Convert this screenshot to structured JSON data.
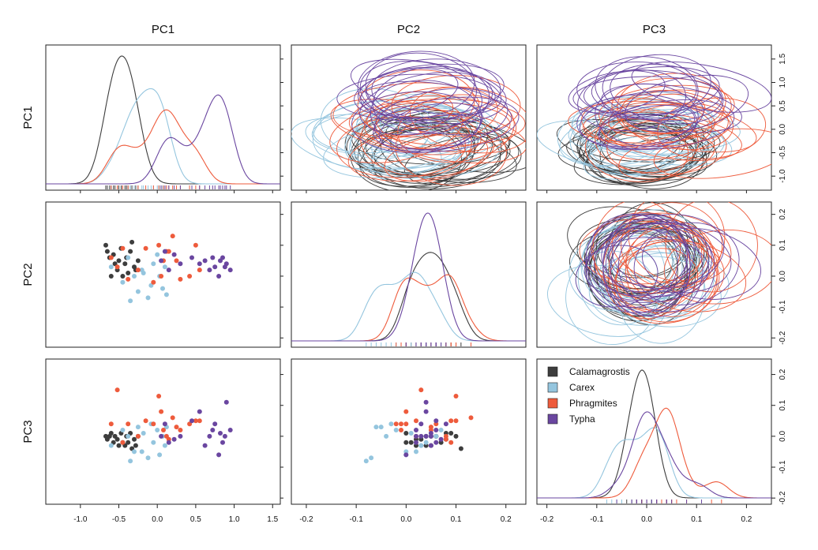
{
  "chart_data": {
    "type": "scatter",
    "variables": [
      "PC1",
      "PC2",
      "PC3"
    ],
    "grid": false,
    "legend_placement": "top-left of PC3 diagonal panel",
    "series": [
      {
        "name": "Calamagrostis",
        "color": "#3d3d3d"
      },
      {
        "name": "Carex",
        "color": "#94c5de"
      },
      {
        "name": "Phragmites",
        "color": "#ee5b3c"
      },
      {
        "name": "Typha",
        "color": "#6a46a0"
      }
    ],
    "axes": {
      "PC1": {
        "range": [
          -1.45,
          1.6
        ],
        "ticks": [
          -1.0,
          -0.5,
          0.0,
          0.5,
          1.0,
          1.5
        ],
        "tick_labels": [
          "-1.0",
          "-0.5",
          "0.0",
          "0.5",
          "1.0",
          "1.5"
        ]
      },
      "PC2": {
        "range": [
          -0.23,
          0.24
        ],
        "ticks": [
          -0.2,
          -0.1,
          0.0,
          0.1,
          0.2
        ],
        "tick_labels": [
          "-0.2",
          "-0.1",
          "0.0",
          "0.1",
          "0.2"
        ]
      },
      "PC3": {
        "range": [
          -0.22,
          0.25
        ],
        "ticks": [
          -0.2,
          -0.1,
          0.0,
          0.1,
          0.2
        ],
        "tick_labels": [
          "-0.2",
          "-0.1",
          "0.0",
          "0.1",
          "0.2"
        ]
      },
      "PC1_y": {
        "ticks": [
          -1.0,
          -0.5,
          0.0,
          0.5,
          1.0,
          1.5
        ],
        "tick_labels": [
          "-1.0",
          "-0.5",
          "0.0",
          "0.5",
          "1.0",
          "1.5"
        ]
      }
    },
    "points": {
      "Calamagrostis": {
        "PC1": [
          -0.67,
          -0.65,
          -0.62,
          -0.6,
          -0.57,
          -0.55,
          -0.52,
          -0.5,
          -0.47,
          -0.45,
          -0.42,
          -0.4,
          -0.38,
          -0.35,
          -0.33,
          -0.3,
          -0.28,
          -0.25
        ],
        "PC2": [
          0.1,
          0.08,
          0.06,
          0.0,
          0.07,
          0.04,
          0.02,
          0.05,
          0.09,
          0.0,
          0.04,
          0.06,
          0.01,
          0.08,
          0.11,
          0.03,
          0.02,
          0.05
        ],
        "PC3": [
          0.0,
          -0.01,
          0.0,
          0.01,
          -0.02,
          0.0,
          -0.01,
          -0.03,
          0.01,
          -0.02,
          -0.03,
          0.0,
          -0.02,
          0.01,
          -0.04,
          -0.01,
          -0.03,
          0.0
        ]
      },
      "Carex": {
        "PC1": [
          -0.6,
          -0.45,
          -0.38,
          -0.3,
          -0.25,
          -0.18,
          -0.12,
          -0.08,
          -0.05,
          0.0,
          0.03,
          0.07,
          0.1,
          0.12,
          -0.35,
          -0.2
        ],
        "PC2": [
          0.03,
          -0.02,
          0.06,
          0.0,
          -0.05,
          0.01,
          -0.07,
          -0.03,
          0.04,
          0.07,
          0.0,
          -0.04,
          0.03,
          -0.06,
          -0.08,
          0.02
        ],
        "PC3": [
          -0.03,
          0.02,
          0.0,
          -0.05,
          0.03,
          0.01,
          -0.07,
          0.04,
          -0.02,
          0.02,
          -0.06,
          0.0,
          -0.03,
          0.03,
          -0.08,
          -0.05
        ]
      },
      "Phragmites": {
        "PC1": [
          -0.6,
          -0.52,
          -0.38,
          -0.25,
          -0.15,
          -0.05,
          0.02,
          0.08,
          0.12,
          0.2,
          0.3,
          0.42,
          0.5,
          -0.45,
          0.05,
          0.25,
          0.55,
          0.15
        ],
        "PC2": [
          0.06,
          0.03,
          -0.01,
          0.02,
          0.09,
          -0.02,
          0.1,
          0.05,
          0.08,
          0.13,
          -0.01,
          0.0,
          0.1,
          0.09,
          0.0,
          0.05,
          0.02,
          0.08
        ],
        "PC3": [
          0.04,
          0.15,
          0.04,
          0.0,
          0.05,
          0.04,
          0.13,
          0.02,
          0.0,
          0.06,
          0.02,
          0.04,
          0.05,
          -0.02,
          0.08,
          0.03,
          0.05,
          -0.01
        ]
      },
      "Typha": {
        "PC1": [
          0.05,
          0.1,
          0.15,
          0.3,
          0.45,
          0.55,
          0.62,
          0.68,
          0.72,
          0.75,
          0.8,
          0.82,
          0.85,
          0.88,
          0.9,
          0.22,
          0.95
        ],
        "PC2": [
          0.05,
          0.08,
          0.02,
          0.04,
          0.06,
          0.04,
          0.05,
          0.02,
          0.06,
          0.03,
          0.0,
          0.05,
          0.06,
          0.03,
          0.04,
          0.07,
          0.02
        ],
        "PC3": [
          0.0,
          0.04,
          -0.02,
          0.0,
          0.05,
          0.08,
          -0.03,
          0.0,
          0.02,
          0.04,
          -0.06,
          0.01,
          -0.02,
          0.0,
          0.11,
          -0.01,
          0.02
        ]
      }
    }
  }
}
